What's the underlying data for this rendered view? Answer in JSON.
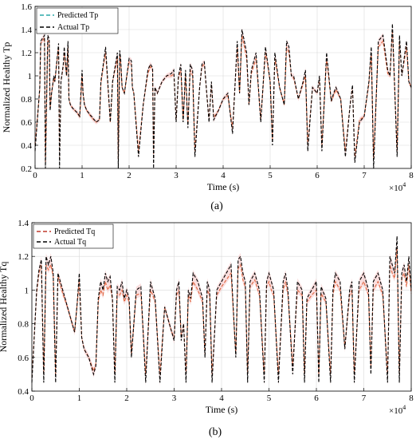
{
  "chart_data": [
    {
      "type": "line",
      "panel_label": "(a)",
      "xlabel": "Time (s)",
      "ylabel": "Normalized Healthy Tp",
      "x_multiplier": "×10",
      "x_multiplier_exp": "4",
      "xlim": [
        0,
        8
      ],
      "ylim": [
        0.2,
        1.6
      ],
      "xticks": [
        "0",
        "1",
        "2",
        "3",
        "4",
        "5",
        "6",
        "7",
        "8"
      ],
      "yticks": [
        "0.2",
        "0.4",
        "0.6",
        "0.8",
        "1",
        "1.2",
        "1.4",
        "1.6"
      ],
      "grid": true,
      "legend_position": "top-left",
      "colors": {
        "predicted": "#e0663f",
        "actual": "#000000",
        "predicted_legend": "#2aa8a8",
        "band": "#f6c2c2"
      },
      "series": [
        {
          "name": "Predicted Tp"
        },
        {
          "name": "Actual Tp"
        }
      ],
      "x": [
        0,
        0.1,
        0.12,
        0.2,
        0.22,
        0.27,
        0.3,
        0.32,
        0.35,
        0.4,
        0.42,
        0.5,
        0.52,
        0.55,
        0.6,
        0.62,
        0.67,
        0.7,
        0.72,
        0.75,
        0.8,
        0.9,
        0.95,
        1.0,
        1.02,
        1.05,
        1.1,
        1.2,
        1.3,
        1.37,
        1.4,
        1.45,
        1.5,
        1.6,
        1.65,
        1.75,
        1.77,
        1.8,
        1.82,
        1.85,
        1.9,
        1.95,
        2.0,
        2.05,
        2.07,
        2.1,
        2.2,
        2.3,
        2.4,
        2.45,
        2.5,
        2.52,
        2.55,
        2.6,
        2.7,
        2.8,
        2.9,
        2.95,
        3.0,
        3.05,
        3.1,
        3.15,
        3.2,
        3.25,
        3.3,
        3.35,
        3.4,
        3.5,
        3.55,
        3.6,
        3.65,
        3.7,
        3.75,
        3.8,
        3.9,
        4.0,
        4.1,
        4.2,
        4.3,
        4.35,
        4.4,
        4.45,
        4.5,
        4.55,
        4.6,
        4.7,
        4.8,
        4.9,
        4.95,
        5.0,
        5.05,
        5.1,
        5.2,
        5.3,
        5.35,
        5.4,
        5.45,
        5.5,
        5.6,
        5.7,
        5.75,
        5.8,
        5.9,
        6.0,
        6.05,
        6.1,
        6.2,
        6.3,
        6.35,
        6.4,
        6.5,
        6.6,
        6.7,
        6.75,
        6.8,
        6.9,
        7.0,
        7.1,
        7.15,
        7.2,
        7.3,
        7.4,
        7.5,
        7.55,
        7.6,
        7.7,
        7.75,
        7.8,
        7.85,
        7.9,
        7.95,
        8.0
      ],
      "actual": [
        0.35,
        0.9,
        1.3,
        1.35,
        0.2,
        1.35,
        1.32,
        0.7,
        0.85,
        1.0,
        0.95,
        1.28,
        0.2,
        0.95,
        1.1,
        1.25,
        1.0,
        1.3,
        0.8,
        0.75,
        0.72,
        0.68,
        0.65,
        1.05,
        0.85,
        0.75,
        0.7,
        0.65,
        0.6,
        0.62,
        0.95,
        1.1,
        1.25,
        0.6,
        0.95,
        1.2,
        0.2,
        1.22,
        1.15,
        0.9,
        0.85,
        1.0,
        1.15,
        1.13,
        0.9,
        0.85,
        0.3,
        0.75,
        1.05,
        1.1,
        1.07,
        0.2,
        0.9,
        0.85,
        0.95,
        1.0,
        1.02,
        1.05,
        0.6,
        1.0,
        1.1,
        0.6,
        1.05,
        0.55,
        1.1,
        1.05,
        0.3,
        0.9,
        1.1,
        1.12,
        0.85,
        0.6,
        0.95,
        0.62,
        0.7,
        0.8,
        0.85,
        0.5,
        1.3,
        0.85,
        1.4,
        1.3,
        1.2,
        0.75,
        1.05,
        1.2,
        0.6,
        1.25,
        1.1,
        0.95,
        0.4,
        1.2,
        0.9,
        0.75,
        1.3,
        1.25,
        1.0,
        1.0,
        0.8,
        0.95,
        1.05,
        0.35,
        0.9,
        0.85,
        1.0,
        0.35,
        1.2,
        0.78,
        0.85,
        0.9,
        0.8,
        0.3,
        0.75,
        0.92,
        0.25,
        0.6,
        0.65,
        0.95,
        1.25,
        0.2,
        1.3,
        1.35,
        1.05,
        1.0,
        1.45,
        0.3,
        1.35,
        1.0,
        1.15,
        1.3,
        0.95,
        0.9
      ],
      "predicted": [
        0.4,
        0.88,
        1.28,
        1.33,
        0.25,
        1.3,
        1.3,
        0.72,
        0.85,
        0.98,
        0.95,
        1.25,
        0.28,
        0.95,
        1.08,
        1.2,
        1.0,
        1.25,
        0.8,
        0.75,
        0.72,
        0.68,
        0.64,
        1.0,
        0.85,
        0.75,
        0.7,
        0.64,
        0.6,
        0.62,
        0.93,
        1.08,
        1.2,
        0.6,
        0.95,
        1.15,
        0.28,
        1.18,
        1.12,
        0.9,
        0.85,
        1.0,
        1.12,
        1.1,
        0.9,
        0.85,
        0.35,
        0.75,
        1.02,
        1.08,
        1.05,
        0.3,
        0.9,
        0.85,
        0.95,
        1.0,
        1.0,
        1.02,
        0.62,
        0.98,
        1.05,
        0.62,
        1.0,
        0.58,
        1.05,
        1.0,
        0.35,
        0.9,
        1.08,
        1.1,
        0.85,
        0.62,
        0.93,
        0.64,
        0.7,
        0.8,
        0.83,
        0.55,
        1.25,
        0.85,
        1.35,
        1.25,
        1.15,
        0.75,
        1.02,
        1.15,
        0.62,
        1.2,
        1.08,
        0.95,
        0.45,
        1.15,
        0.9,
        0.75,
        1.25,
        1.2,
        1.0,
        0.98,
        0.8,
        0.93,
        1.0,
        0.4,
        0.9,
        0.85,
        0.98,
        0.4,
        1.15,
        0.78,
        0.83,
        0.88,
        0.8,
        0.35,
        0.75,
        0.9,
        0.3,
        0.62,
        0.65,
        0.93,
        1.2,
        0.28,
        1.25,
        1.3,
        1.02,
        1.0,
        1.4,
        0.35,
        1.3,
        1.0,
        1.12,
        1.25,
        0.95,
        0.9
      ]
    },
    {
      "type": "line",
      "panel_label": "(b)",
      "xlabel": "Time (s)",
      "ylabel": "Normalized Healthy Tq",
      "x_multiplier": "×10",
      "x_multiplier_exp": "4",
      "xlim": [
        0,
        8
      ],
      "ylim": [
        0.4,
        1.4
      ],
      "xticks": [
        "0",
        "1",
        "2",
        "3",
        "4",
        "5",
        "6",
        "7",
        "8"
      ],
      "yticks": [
        "0.4",
        "0.6",
        "0.8",
        "1",
        "1.2",
        "1.4"
      ],
      "grid": true,
      "legend_position": "top-left",
      "colors": {
        "predicted": "#e0663f",
        "actual": "#000000",
        "predicted_legend": "#c0392b",
        "band": "#f6c2c2"
      },
      "series": [
        {
          "name": "Predicted Tq"
        },
        {
          "name": "Actual Tq"
        }
      ],
      "x": [
        0,
        0.1,
        0.15,
        0.2,
        0.25,
        0.3,
        0.35,
        0.4,
        0.45,
        0.5,
        0.55,
        0.6,
        0.65,
        0.7,
        0.75,
        0.8,
        0.85,
        0.9,
        0.95,
        1.0,
        1.05,
        1.1,
        1.2,
        1.3,
        1.35,
        1.4,
        1.45,
        1.5,
        1.55,
        1.6,
        1.65,
        1.7,
        1.75,
        1.8,
        1.85,
        1.9,
        1.95,
        2.0,
        2.05,
        2.1,
        2.2,
        2.3,
        2.4,
        2.5,
        2.55,
        2.6,
        2.7,
        2.8,
        2.9,
        2.95,
        3.0,
        3.05,
        3.1,
        3.15,
        3.2,
        3.25,
        3.3,
        3.35,
        3.4,
        3.5,
        3.6,
        3.65,
        3.7,
        3.75,
        3.8,
        3.9,
        4.0,
        4.1,
        4.2,
        4.3,
        4.35,
        4.4,
        4.45,
        4.5,
        4.55,
        4.6,
        4.7,
        4.8,
        4.9,
        4.95,
        5.0,
        5.05,
        5.1,
        5.2,
        5.3,
        5.35,
        5.4,
        5.5,
        5.6,
        5.7,
        5.75,
        5.8,
        5.9,
        6.0,
        6.05,
        6.1,
        6.2,
        6.3,
        6.35,
        6.4,
        6.5,
        6.6,
        6.7,
        6.75,
        6.8,
        6.9,
        7.0,
        7.1,
        7.15,
        7.2,
        7.3,
        7.4,
        7.5,
        7.55,
        7.6,
        7.65,
        7.7,
        7.75,
        7.8,
        7.85,
        7.9,
        7.95,
        8.0
      ],
      "actual": [
        0.45,
        1.0,
        1.12,
        1.18,
        0.45,
        1.2,
        1.15,
        1.2,
        1.1,
        0.45,
        1.1,
        1.05,
        1.0,
        0.95,
        0.9,
        0.85,
        0.8,
        0.75,
        0.9,
        1.1,
        0.72,
        0.65,
        0.6,
        0.5,
        0.55,
        0.95,
        1.05,
        1.0,
        1.1,
        1.05,
        1.08,
        0.95,
        0.45,
        1.02,
        1.0,
        1.05,
        0.95,
        1.0,
        0.95,
        0.6,
        1.0,
        1.02,
        0.45,
        1.05,
        1.0,
        0.95,
        0.45,
        0.9,
        0.8,
        0.75,
        0.7,
        1.0,
        1.05,
        0.7,
        0.8,
        0.45,
        1.0,
        0.95,
        1.1,
        1.05,
        0.95,
        0.6,
        1.05,
        1.0,
        0.45,
        1.0,
        1.05,
        1.1,
        1.15,
        0.6,
        1.18,
        1.2,
        1.1,
        1.05,
        0.45,
        1.05,
        1.1,
        1.0,
        0.45,
        1.05,
        1.1,
        1.05,
        1.0,
        0.45,
        1.05,
        1.1,
        1.0,
        0.5,
        1.05,
        1.0,
        0.45,
        0.95,
        1.0,
        1.05,
        0.45,
        1.02,
        0.95,
        0.45,
        1.0,
        1.1,
        1.05,
        0.65,
        1.0,
        1.05,
        0.45,
        1.05,
        1.1,
        1.0,
        0.5,
        1.05,
        1.1,
        1.0,
        0.45,
        1.2,
        1.15,
        1.1,
        1.32,
        0.45,
        1.1,
        1.15,
        1.05,
        1.2,
        1.0
      ],
      "predicted": [
        0.48,
        0.98,
        1.1,
        1.15,
        0.5,
        1.15,
        1.12,
        1.15,
        1.08,
        0.5,
        1.08,
        1.03,
        0.98,
        0.94,
        0.9,
        0.85,
        0.8,
        0.75,
        0.9,
        1.05,
        0.72,
        0.65,
        0.6,
        0.52,
        0.56,
        0.93,
        1.0,
        0.97,
        1.05,
        1.0,
        1.03,
        0.94,
        0.5,
        0.98,
        0.97,
        1.0,
        0.93,
        0.97,
        0.93,
        0.62,
        0.97,
        0.98,
        0.5,
        1.0,
        0.97,
        0.93,
        0.5,
        0.9,
        0.8,
        0.75,
        0.72,
        0.97,
        1.0,
        0.72,
        0.8,
        0.5,
        0.97,
        0.93,
        1.05,
        1.0,
        0.93,
        0.62,
        1.0,
        0.97,
        0.5,
        0.97,
        1.02,
        1.06,
        1.1,
        0.62,
        1.13,
        1.15,
        1.06,
        1.02,
        0.5,
        1.02,
        1.06,
        0.97,
        0.5,
        1.02,
        1.05,
        1.0,
        0.97,
        0.5,
        1.0,
        1.05,
        0.97,
        0.55,
        1.0,
        0.97,
        0.5,
        0.93,
        0.97,
        1.0,
        0.5,
        0.98,
        0.93,
        0.5,
        0.97,
        1.05,
        1.0,
        0.66,
        0.97,
        1.0,
        0.5,
        1.0,
        1.05,
        0.97,
        0.55,
        1.0,
        1.05,
        0.97,
        0.5,
        1.15,
        1.1,
        1.07,
        1.25,
        0.5,
        1.07,
        1.1,
        1.02,
        1.15,
        0.98
      ]
    }
  ]
}
